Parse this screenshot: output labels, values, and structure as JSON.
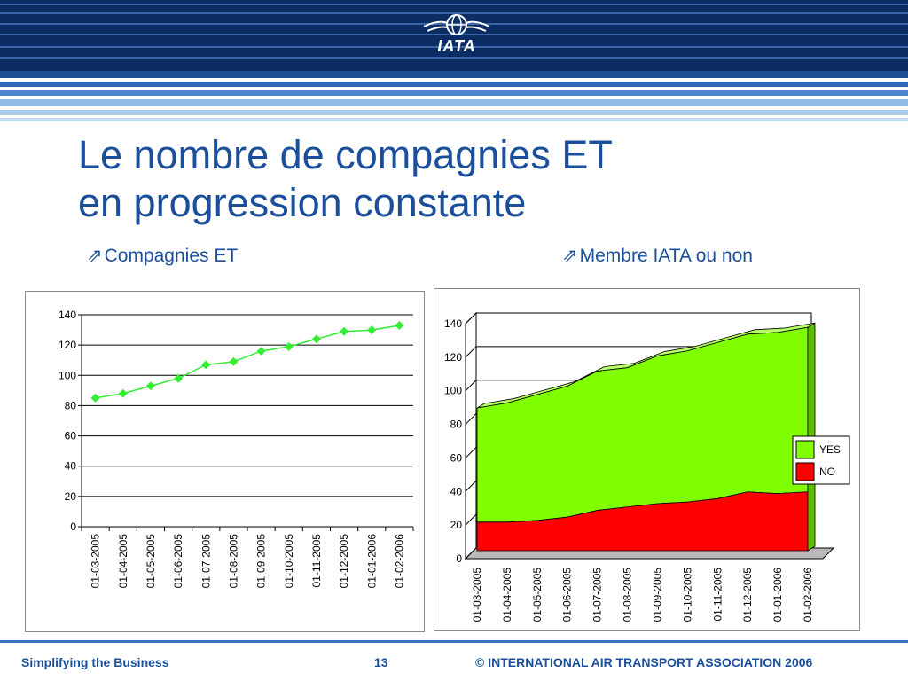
{
  "header": {
    "logo_text": "IATA",
    "colors": {
      "dark_blue": "#0c2c64",
      "mid_blue": "#2d67b8",
      "light_blue": "#8fbde4"
    }
  },
  "slide": {
    "title_line1": "Le nombre de compagnies ET",
    "title_line2": "en progression constante",
    "left_subtitle": "Compagnies ET",
    "right_subtitle": "Membre IATA ou non",
    "subtitle_arrow": "⇗"
  },
  "chart_data": [
    {
      "type": "line",
      "categories": [
        "01-03-2005",
        "01-04-2005",
        "01-05-2005",
        "01-06-2005",
        "01-07-2005",
        "01-08-2005",
        "01-09-2005",
        "01-10-2005",
        "01-11-2005",
        "01-12-2005",
        "01-01-2006",
        "01-02-2006"
      ],
      "series": [
        {
          "values": [
            85,
            88,
            93,
            98,
            107,
            109,
            116,
            119,
            124,
            129,
            130,
            133
          ],
          "color": "#33ee33"
        }
      ],
      "ylim": [
        0,
        140
      ],
      "yticks": [
        0,
        20,
        40,
        60,
        80,
        100,
        120,
        140
      ],
      "grid": true
    },
    {
      "type": "area",
      "stacked": true,
      "categories": [
        "01-03-2005",
        "01-04-2005",
        "01-05-2005",
        "01-06-2005",
        "01-07-2005",
        "01-08-2005",
        "01-09-2005",
        "01-10-2005",
        "01-11-2005",
        "01-12-2005",
        "01-01-2006",
        "01-02-2006"
      ],
      "series": [
        {
          "name": "NO",
          "values": [
            17,
            17,
            18,
            20,
            24,
            26,
            28,
            29,
            31,
            35,
            34,
            35
          ],
          "color": "#ff0000"
        },
        {
          "name": "YES",
          "values": [
            68,
            71,
            75,
            78,
            83,
            83,
            88,
            90,
            93,
            94,
            96,
            98
          ],
          "color": "#80ff00"
        }
      ],
      "ylim": [
        0,
        140
      ],
      "yticks": [
        0,
        20,
        40,
        60,
        80,
        100,
        120,
        140
      ],
      "grid": true,
      "legend": [
        "YES",
        "NO"
      ],
      "legend_position": "right"
    }
  ],
  "footer": {
    "left": "Simplifying the Business",
    "page_number": "13",
    "copyright": "©  INTERNATIONAL AIR TRANSPORT ASSOCIATION 2006"
  }
}
